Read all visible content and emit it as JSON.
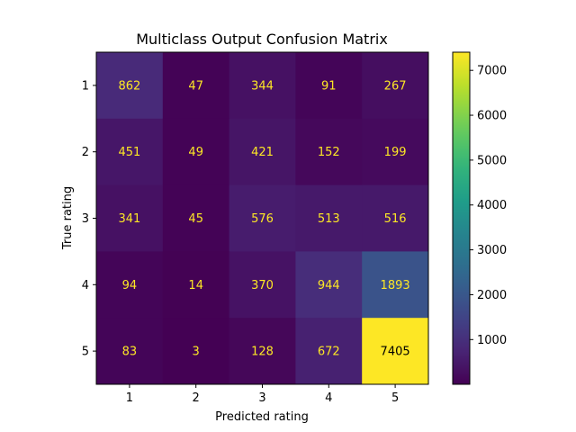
{
  "chart_data": {
    "type": "heatmap",
    "title": "Multiclass Output Confusion Matrix",
    "xlabel": "Predicted rating",
    "ylabel": "True rating",
    "x_categories": [
      "1",
      "2",
      "3",
      "4",
      "5"
    ],
    "y_categories": [
      "1",
      "2",
      "3",
      "4",
      "5"
    ],
    "matrix": [
      [
        862,
        47,
        344,
        91,
        267
      ],
      [
        451,
        49,
        421,
        152,
        199
      ],
      [
        341,
        45,
        576,
        513,
        516
      ],
      [
        94,
        14,
        370,
        944,
        1893
      ],
      [
        83,
        3,
        128,
        672,
        7405
      ]
    ],
    "colormap": "viridis",
    "colorbar": {
      "ticks": [
        "1000",
        "2000",
        "3000",
        "4000",
        "5000",
        "6000",
        "7000"
      ],
      "range": [
        3,
        7405
      ]
    },
    "label_colors": {
      "light_cells": "#000000",
      "dark_cells": "#fde725"
    }
  }
}
